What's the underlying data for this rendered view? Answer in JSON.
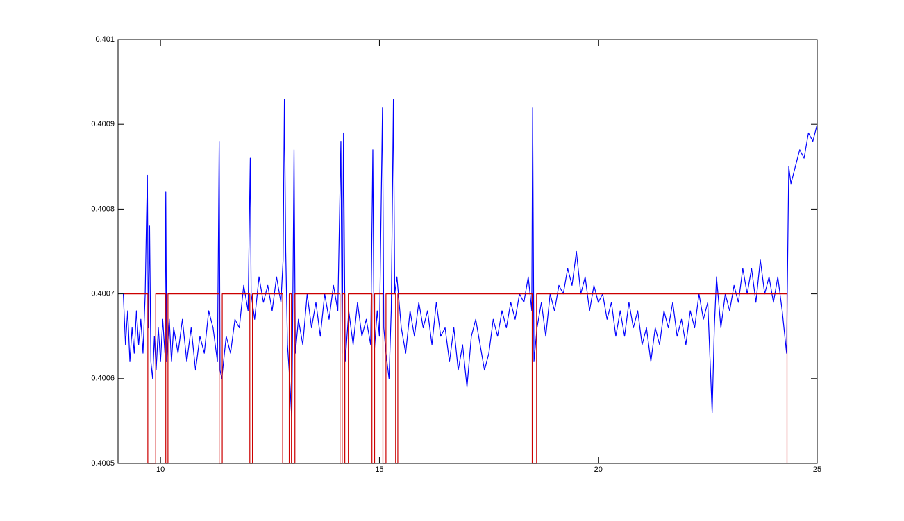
{
  "chart_data": {
    "type": "line",
    "xlim": [
      9.03,
      25
    ],
    "ylim": [
      0.4005,
      0.401
    ],
    "xticks": [
      10,
      15,
      20,
      25
    ],
    "yticks": [
      0.4005,
      0.4006,
      0.4007,
      0.4008,
      0.4009,
      0.401
    ],
    "series": [
      {
        "color": "#0000ff",
        "x": [
          9.15,
          9.2,
          9.25,
          9.3,
          9.35,
          9.4,
          9.45,
          9.5,
          9.55,
          9.6,
          9.65,
          9.68,
          9.7,
          9.72,
          9.75,
          9.78,
          9.82,
          9.86,
          9.9,
          9.95,
          10.0,
          10.05,
          10.1,
          10.12,
          10.14,
          10.2,
          10.25,
          10.3,
          10.4,
          10.5,
          10.6,
          10.7,
          10.8,
          10.9,
          11.0,
          11.1,
          11.2,
          11.3,
          11.34,
          11.36,
          11.4,
          11.5,
          11.6,
          11.7,
          11.8,
          11.9,
          12.0,
          12.05,
          12.07,
          12.15,
          12.25,
          12.35,
          12.45,
          12.55,
          12.65,
          12.75,
          12.8,
          12.83,
          12.86,
          12.9,
          12.95,
          13.0,
          13.05,
          13.08,
          13.15,
          13.25,
          13.35,
          13.45,
          13.55,
          13.65,
          13.75,
          13.85,
          13.95,
          14.05,
          14.12,
          14.15,
          14.18,
          14.22,
          14.3,
          14.4,
          14.5,
          14.6,
          14.7,
          14.8,
          14.85,
          14.88,
          14.95,
          15.0,
          15.07,
          15.1,
          15.15,
          15.22,
          15.27,
          15.32,
          15.35,
          15.4,
          15.5,
          15.6,
          15.7,
          15.8,
          15.9,
          16.0,
          16.1,
          16.2,
          16.3,
          16.4,
          16.5,
          16.6,
          16.7,
          16.8,
          16.9,
          17.0,
          17.1,
          17.2,
          17.3,
          17.4,
          17.5,
          17.6,
          17.7,
          17.8,
          17.9,
          18.0,
          18.1,
          18.2,
          18.3,
          18.4,
          18.48,
          18.5,
          18.53,
          18.6,
          18.7,
          18.8,
          18.9,
          19.0,
          19.1,
          19.2,
          19.3,
          19.4,
          19.5,
          19.6,
          19.7,
          19.8,
          19.9,
          20.0,
          20.1,
          20.2,
          20.3,
          20.4,
          20.5,
          20.6,
          20.7,
          20.8,
          20.9,
          21.0,
          21.1,
          21.2,
          21.3,
          21.4,
          21.5,
          21.6,
          21.7,
          21.8,
          21.9,
          22.0,
          22.1,
          22.2,
          22.3,
          22.4,
          22.5,
          22.6,
          22.65,
          22.7,
          22.8,
          22.9,
          23.0,
          23.1,
          23.2,
          23.3,
          23.4,
          23.5,
          23.6,
          23.7,
          23.8,
          23.9,
          24.0,
          24.1,
          24.2,
          24.3,
          24.35,
          24.4,
          24.5,
          24.6,
          24.7,
          24.8,
          24.9,
          25.0
        ],
        "values": [
          0.4007,
          0.40064,
          0.40068,
          0.40062,
          0.40066,
          0.40063,
          0.40068,
          0.40064,
          0.40067,
          0.40063,
          0.4007,
          0.40079,
          0.40084,
          0.40066,
          0.40078,
          0.40062,
          0.4006,
          0.40065,
          0.40061,
          0.40066,
          0.40062,
          0.40067,
          0.40063,
          0.40082,
          0.40062,
          0.40067,
          0.40062,
          0.40066,
          0.40063,
          0.40067,
          0.40062,
          0.40066,
          0.40061,
          0.40065,
          0.40063,
          0.40068,
          0.40066,
          0.40062,
          0.40088,
          0.40061,
          0.4006,
          0.40065,
          0.40063,
          0.40067,
          0.40066,
          0.40071,
          0.40068,
          0.40086,
          0.4007,
          0.40067,
          0.40072,
          0.40069,
          0.40071,
          0.40068,
          0.40072,
          0.40069,
          0.40074,
          0.40093,
          0.40075,
          0.40064,
          0.4006,
          0.40055,
          0.40087,
          0.40063,
          0.40067,
          0.40064,
          0.4007,
          0.40066,
          0.40069,
          0.40065,
          0.4007,
          0.40067,
          0.40071,
          0.40068,
          0.40088,
          0.40063,
          0.40089,
          0.40062,
          0.40068,
          0.40064,
          0.40069,
          0.40065,
          0.40067,
          0.40064,
          0.40087,
          0.40063,
          0.40068,
          0.40065,
          0.40092,
          0.40066,
          0.40063,
          0.4006,
          0.40068,
          0.40093,
          0.4007,
          0.40072,
          0.40066,
          0.40063,
          0.40068,
          0.40065,
          0.40069,
          0.40066,
          0.40068,
          0.40064,
          0.40069,
          0.40065,
          0.40066,
          0.40062,
          0.40066,
          0.40061,
          0.40064,
          0.40059,
          0.40065,
          0.40067,
          0.40064,
          0.40061,
          0.40063,
          0.40067,
          0.40065,
          0.40068,
          0.40066,
          0.40069,
          0.40067,
          0.4007,
          0.40069,
          0.40072,
          0.40068,
          0.40092,
          0.40062,
          0.40066,
          0.40069,
          0.40065,
          0.4007,
          0.40068,
          0.40071,
          0.4007,
          0.40073,
          0.40071,
          0.40075,
          0.4007,
          0.40072,
          0.40068,
          0.40071,
          0.40069,
          0.4007,
          0.40067,
          0.40069,
          0.40065,
          0.40068,
          0.40065,
          0.40069,
          0.40066,
          0.40068,
          0.40064,
          0.40066,
          0.40062,
          0.40066,
          0.40064,
          0.40068,
          0.40066,
          0.40069,
          0.40065,
          0.40067,
          0.40064,
          0.40068,
          0.40066,
          0.4007,
          0.40067,
          0.40069,
          0.40056,
          0.40066,
          0.40072,
          0.40066,
          0.4007,
          0.40068,
          0.40071,
          0.40069,
          0.40073,
          0.4007,
          0.40073,
          0.40069,
          0.40074,
          0.4007,
          0.40072,
          0.40069,
          0.40072,
          0.40068,
          0.40063,
          0.40085,
          0.40083,
          0.40085,
          0.40087,
          0.40086,
          0.40089,
          0.40088,
          0.4009
        ]
      },
      {
        "color": "#cc0000",
        "x": [
          9.16,
          9.71,
          9.71,
          9.89,
          9.89,
          10.12,
          10.12,
          10.17,
          10.17,
          11.34,
          11.34,
          11.41,
          11.41,
          12.04,
          12.04,
          12.1,
          12.1,
          12.79,
          12.79,
          12.94,
          12.94,
          12.99,
          12.99,
          13.07,
          13.07,
          14.1,
          14.1,
          14.15,
          14.15,
          14.21,
          14.21,
          14.29,
          14.29,
          14.83,
          14.83,
          14.89,
          14.89,
          15.08,
          15.08,
          15.15,
          15.15,
          15.37,
          15.37,
          15.42,
          15.42,
          18.49,
          18.49,
          18.59,
          18.59,
          24.31,
          24.31
        ],
        "values": [
          0.4007,
          0.4007,
          0.4005,
          0.4005,
          0.4007,
          0.4007,
          0.4005,
          0.4005,
          0.4007,
          0.4007,
          0.4005,
          0.4005,
          0.4007,
          0.4007,
          0.4005,
          0.4005,
          0.4007,
          0.4007,
          0.4005,
          0.4005,
          0.4007,
          0.4007,
          0.4005,
          0.4005,
          0.4007,
          0.4007,
          0.4005,
          0.4005,
          0.4007,
          0.4007,
          0.4005,
          0.4005,
          0.4007,
          0.4007,
          0.4005,
          0.4005,
          0.4007,
          0.4007,
          0.4005,
          0.4005,
          0.4007,
          0.4007,
          0.4005,
          0.4005,
          0.4007,
          0.4007,
          0.4005,
          0.4005,
          0.4007,
          0.4007,
          0.4005
        ]
      }
    ]
  }
}
